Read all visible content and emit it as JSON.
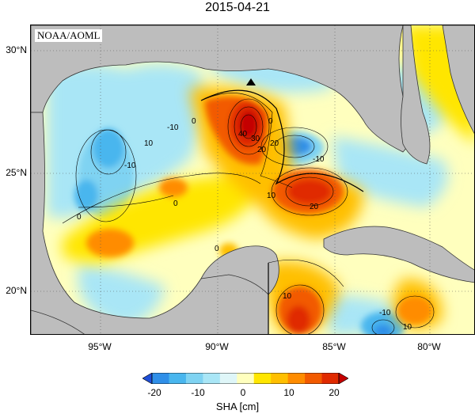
{
  "title": "2015-04-21",
  "credit": "NOAA/AOML",
  "lat_labels": [
    "30°N",
    "25°N",
    "20°N"
  ],
  "lon_labels": [
    "95°W",
    "90°W",
    "85°W",
    "80°W"
  ],
  "contour_labels": [
    "0",
    "-10",
    "10",
    "-10",
    "0",
    "40",
    "30",
    "20",
    "-10",
    "0",
    "20",
    "10",
    "20",
    "0",
    "10",
    "-10",
    "10",
    "0"
  ],
  "colorbar": {
    "label": "SHA [cm]",
    "ticks": [
      "-20",
      "-10",
      "0",
      "10",
      "20"
    ],
    "colors": [
      "#1f4fd8",
      "#2f8fe8",
      "#49b6ee",
      "#7fd3f2",
      "#a9e6f6",
      "#dff6f8",
      "#ffffbe",
      "#ffe600",
      "#ffbf00",
      "#ff8c00",
      "#f25a00",
      "#e02a00",
      "#c40000"
    ]
  },
  "marker": "triangle-marker"
}
